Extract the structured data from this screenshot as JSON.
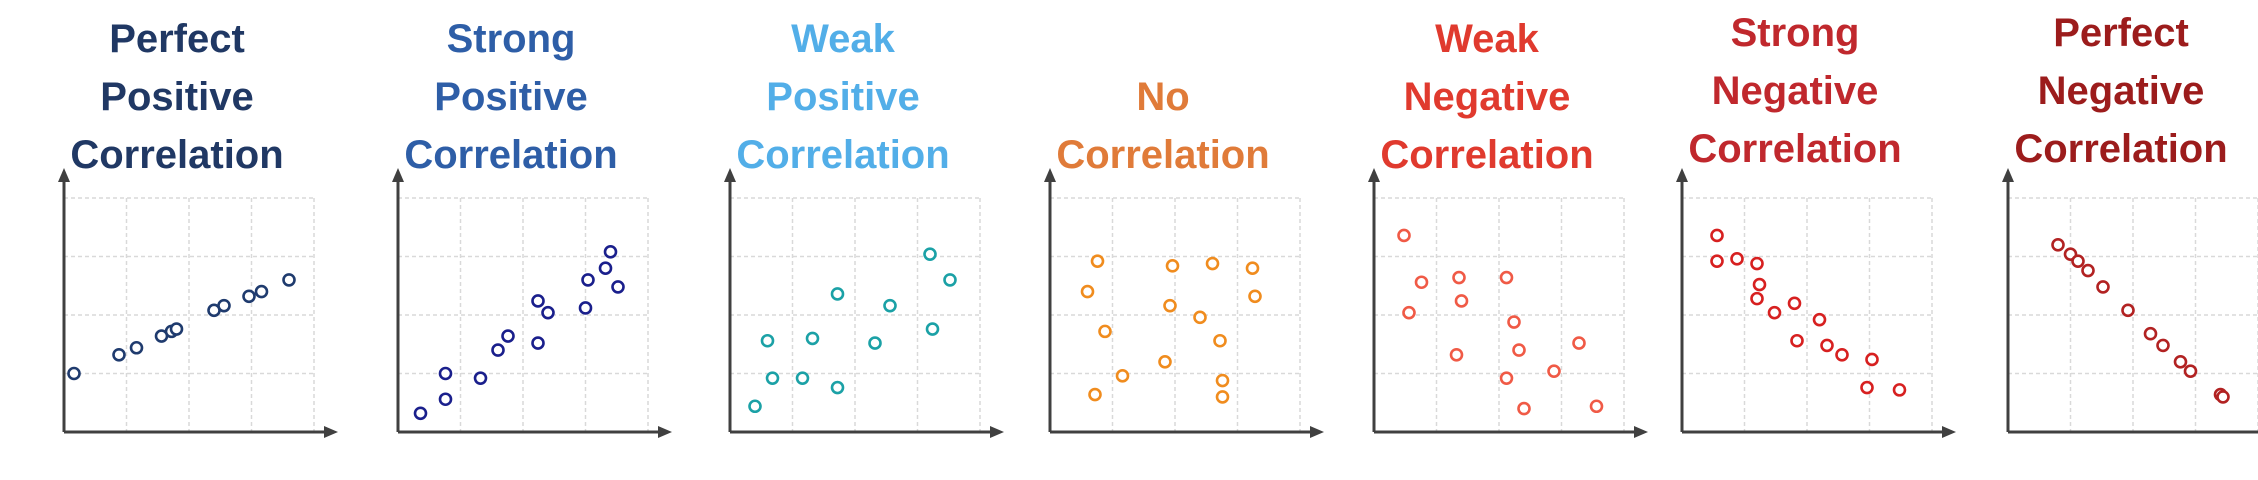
{
  "chart_data": [
    {
      "type": "scatter",
      "title_lines": [
        "Perfect",
        "Positive",
        "Correlation"
      ],
      "color": "#1f3b6e",
      "title_color": "#203864",
      "xlim": [
        0,
        10
      ],
      "ylim": [
        0,
        10
      ],
      "grid": true,
      "points": [
        [
          0.4,
          2.5
        ],
        [
          2.2,
          3.3
        ],
        [
          2.9,
          3.6
        ],
        [
          3.9,
          4.1
        ],
        [
          4.3,
          4.3
        ],
        [
          4.5,
          4.4
        ],
        [
          6.0,
          5.2
        ],
        [
          6.4,
          5.4
        ],
        [
          7.4,
          5.8
        ],
        [
          7.9,
          6.0
        ],
        [
          9.0,
          6.5
        ]
      ]
    },
    {
      "type": "scatter",
      "title_lines": [
        "Strong",
        "Positive",
        "Correlation"
      ],
      "color": "#1a1f8c",
      "title_color": "#2e5ea7",
      "xlim": [
        0,
        10
      ],
      "ylim": [
        0,
        10
      ],
      "grid": true,
      "points": [
        [
          0.9,
          0.8
        ],
        [
          1.9,
          1.4
        ],
        [
          1.9,
          2.5
        ],
        [
          3.3,
          2.3
        ],
        [
          4.0,
          3.5
        ],
        [
          4.4,
          4.1
        ],
        [
          5.6,
          3.8
        ],
        [
          5.6,
          5.6
        ],
        [
          6.0,
          5.1
        ],
        [
          7.5,
          5.3
        ],
        [
          7.6,
          6.5
        ],
        [
          8.3,
          7.0
        ],
        [
          8.5,
          7.7
        ],
        [
          8.8,
          6.2
        ]
      ]
    },
    {
      "type": "scatter",
      "title_lines": [
        "Weak",
        "Positive",
        "Correlation"
      ],
      "color": "#1ba1a6",
      "title_color": "#52aee8",
      "xlim": [
        0,
        10
      ],
      "ylim": [
        0,
        10
      ],
      "grid": true,
      "points": [
        [
          1.0,
          1.1
        ],
        [
          1.5,
          3.9
        ],
        [
          1.7,
          2.3
        ],
        [
          2.9,
          2.3
        ],
        [
          3.3,
          4.0
        ],
        [
          4.3,
          1.9
        ],
        [
          4.3,
          5.9
        ],
        [
          5.8,
          3.8
        ],
        [
          6.4,
          5.4
        ],
        [
          8.0,
          7.6
        ],
        [
          8.1,
          4.4
        ],
        [
          8.8,
          6.5
        ]
      ]
    },
    {
      "type": "scatter",
      "title_lines": [
        "No",
        "Correlation"
      ],
      "color": "#f08c1e",
      "title_color": "#e07b39",
      "xlim": [
        0,
        10
      ],
      "ylim": [
        0,
        10
      ],
      "grid": true,
      "points": [
        [
          1.5,
          6.0
        ],
        [
          1.9,
          7.3
        ],
        [
          2.2,
          4.3
        ],
        [
          1.8,
          1.6
        ],
        [
          2.9,
          2.4
        ],
        [
          4.6,
          3.0
        ],
        [
          4.8,
          5.4
        ],
        [
          4.9,
          7.1
        ],
        [
          6.0,
          4.9
        ],
        [
          6.5,
          7.2
        ],
        [
          6.8,
          3.9
        ],
        [
          6.9,
          2.2
        ],
        [
          6.9,
          1.5
        ],
        [
          8.1,
          7.0
        ],
        [
          8.2,
          5.8
        ]
      ]
    },
    {
      "type": "scatter",
      "title_lines": [
        "Weak",
        "Negative",
        "Correlation"
      ],
      "color": "#f05a46",
      "title_color": "#e03a2e",
      "xlim": [
        0,
        10
      ],
      "ylim": [
        0,
        10
      ],
      "grid": true,
      "points": [
        [
          1.2,
          8.4
        ],
        [
          1.4,
          5.1
        ],
        [
          1.9,
          6.4
        ],
        [
          3.3,
          3.3
        ],
        [
          3.4,
          6.6
        ],
        [
          3.5,
          5.6
        ],
        [
          5.3,
          6.6
        ],
        [
          5.3,
          2.3
        ],
        [
          5.6,
          4.7
        ],
        [
          5.8,
          3.5
        ],
        [
          6.0,
          1.0
        ],
        [
          7.2,
          2.6
        ],
        [
          8.2,
          3.8
        ],
        [
          8.9,
          1.1
        ]
      ]
    },
    {
      "type": "scatter",
      "title_lines": [
        "Strong",
        "Negative",
        "Correlation"
      ],
      "color": "#d72020",
      "title_color": "#c0282d",
      "xlim": [
        0,
        10
      ],
      "ylim": [
        0,
        10
      ],
      "grid": true,
      "points": [
        [
          1.4,
          8.4
        ],
        [
          1.4,
          7.3
        ],
        [
          2.2,
          7.4
        ],
        [
          3.0,
          7.2
        ],
        [
          3.1,
          6.3
        ],
        [
          3.0,
          5.7
        ],
        [
          3.7,
          5.1
        ],
        [
          4.5,
          5.5
        ],
        [
          4.6,
          3.9
        ],
        [
          5.5,
          4.8
        ],
        [
          5.8,
          3.7
        ],
        [
          6.4,
          3.3
        ],
        [
          7.4,
          1.9
        ],
        [
          7.6,
          3.1
        ],
        [
          8.7,
          1.8
        ]
      ]
    },
    {
      "type": "scatter",
      "title_lines": [
        "Perfect",
        "Negative",
        "Correlation"
      ],
      "color": "#b22222",
      "title_color": "#9c1c1c",
      "xlim": [
        0,
        10
      ],
      "ylim": [
        0,
        10
      ],
      "grid": true,
      "points": [
        [
          2.0,
          8.0
        ],
        [
          2.5,
          7.6
        ],
        [
          2.8,
          7.3
        ],
        [
          3.2,
          6.9
        ],
        [
          3.8,
          6.2
        ],
        [
          4.8,
          5.2
        ],
        [
          5.7,
          4.2
        ],
        [
          6.2,
          3.7
        ],
        [
          6.9,
          3.0
        ],
        [
          7.3,
          2.6
        ],
        [
          8.5,
          1.6
        ],
        [
          8.6,
          1.5
        ]
      ]
    }
  ]
}
